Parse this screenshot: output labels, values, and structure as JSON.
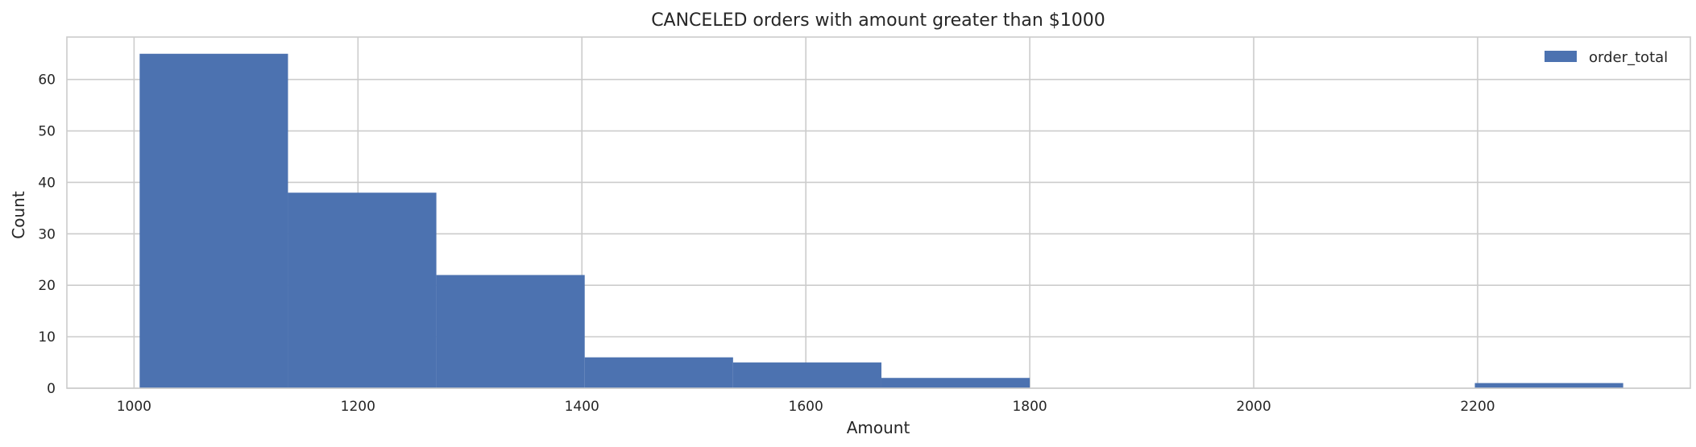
{
  "chart_data": {
    "type": "bar",
    "subtype": "histogram",
    "title": "CANCELED orders with amount greater than $1000",
    "xlabel": "Amount",
    "ylabel": "Count",
    "xlim": [
      940,
      2390
    ],
    "ylim": [
      0,
      68.25
    ],
    "xticks": [
      1000,
      1200,
      1400,
      1600,
      1800,
      2000,
      2200
    ],
    "yticks": [
      0,
      10,
      20,
      30,
      40,
      50,
      60
    ],
    "grid": true,
    "legend_position": "top-right",
    "bar_color": "#4c72b0",
    "series": [
      {
        "name": "order_total",
        "bins": [
          {
            "x0": 1005,
            "x1": 1137.5,
            "count": 65
          },
          {
            "x0": 1137.5,
            "x1": 1270,
            "count": 38
          },
          {
            "x0": 1270,
            "x1": 1402.5,
            "count": 22
          },
          {
            "x0": 1402.5,
            "x1": 1535,
            "count": 6
          },
          {
            "x0": 1535,
            "x1": 1667.5,
            "count": 5
          },
          {
            "x0": 1667.5,
            "x1": 1800,
            "count": 2
          },
          {
            "x0": 1800,
            "x1": 1932.5,
            "count": 0
          },
          {
            "x0": 1932.5,
            "x1": 2065,
            "count": 0
          },
          {
            "x0": 2065,
            "x1": 2197.5,
            "count": 0
          },
          {
            "x0": 2197.5,
            "x1": 2330,
            "count": 1
          }
        ]
      }
    ]
  }
}
